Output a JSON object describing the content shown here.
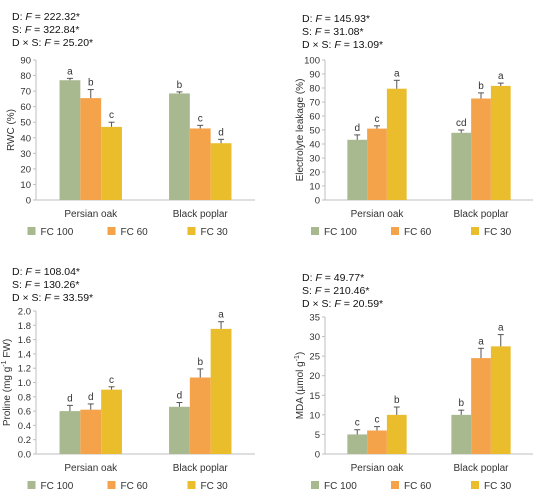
{
  "chart_data": [
    {
      "type": "bar",
      "panel": "top-left",
      "stats": [
        {
          "prefix": "D: ",
          "var": "F",
          "rest": " = 222.32*"
        },
        {
          "prefix": "S: ",
          "var": "F",
          "rest": " = 322.84*"
        },
        {
          "prefix": "D × S: ",
          "var": "F",
          "rest": " = 25.20*"
        }
      ],
      "ylabel": "RWC (%)",
      "ylabel_sup": "",
      "ylabel_tail": "",
      "ylim": [
        0,
        90
      ],
      "yticks": [
        0,
        10,
        20,
        30,
        40,
        50,
        60,
        70,
        80,
        90
      ],
      "decimals": 0,
      "categories": [
        "Persian oak",
        "Black poplar"
      ],
      "series": [
        {
          "name": "FC 100",
          "color": "#a9b98f",
          "values": [
            77,
            68.5
          ],
          "errors": [
            1.2,
            1.0
          ],
          "letters": [
            "a",
            "b"
          ]
        },
        {
          "name": "FC 60",
          "color": "#f5a34a",
          "values": [
            65.5,
            46
          ],
          "errors": [
            5.5,
            2.0
          ],
          "letters": [
            "b",
            "c"
          ]
        },
        {
          "name": "FC 30",
          "color": "#e9bd2c",
          "values": [
            47,
            36.5
          ],
          "errors": [
            3.0,
            2.5
          ],
          "letters": [
            "c",
            "d"
          ]
        }
      ]
    },
    {
      "type": "bar",
      "panel": "top-right",
      "stats": [
        {
          "prefix": "D: ",
          "var": "F",
          "rest": " = 145.93*"
        },
        {
          "prefix": "S: ",
          "var": "F",
          "rest": " = 31.08*"
        },
        {
          "prefix": "D × S: ",
          "var": "F",
          "rest": " = 13.09*"
        }
      ],
      "ylabel": "Electrolyte leakage (%)",
      "ylabel_sup": "",
      "ylabel_tail": "",
      "ylim": [
        0,
        100
      ],
      "yticks": [
        0,
        10,
        20,
        30,
        40,
        50,
        60,
        70,
        80,
        90,
        100
      ],
      "decimals": 0,
      "categories": [
        "Persian oak",
        "Black poplar"
      ],
      "series": [
        {
          "name": "FC 100",
          "color": "#a9b98f",
          "values": [
            43,
            48
          ],
          "errors": [
            3.5,
            2.0
          ],
          "letters": [
            "d",
            "cd"
          ]
        },
        {
          "name": "FC 60",
          "color": "#f5a34a",
          "values": [
            51,
            72.5
          ],
          "errors": [
            2.0,
            4.0
          ],
          "letters": [
            "c",
            "b"
          ]
        },
        {
          "name": "FC 30",
          "color": "#e9bd2c",
          "values": [
            79.5,
            81.5
          ],
          "errors": [
            6.0,
            2.0
          ],
          "letters": [
            "a",
            "a"
          ]
        }
      ]
    },
    {
      "type": "bar",
      "panel": "bottom-left",
      "stats": [
        {
          "prefix": "D: ",
          "var": "F",
          "rest": " = 108.04*"
        },
        {
          "prefix": "S: ",
          "var": "F",
          "rest": " = 130.26*"
        },
        {
          "prefix": "D × S: ",
          "var": "F",
          "rest": " = 33.59*"
        }
      ],
      "ylabel": "Proline (mg g",
      "ylabel_sup": "-1",
      "ylabel_tail": " FW)",
      "ylim": [
        0,
        2
      ],
      "yticks": [
        0,
        0.2,
        0.4,
        0.6,
        0.8,
        1.0,
        1.2,
        1.4,
        1.6,
        1.8,
        2.0
      ],
      "decimals": 1,
      "categories": [
        "Persian oak",
        "Black poplar"
      ],
      "series": [
        {
          "name": "FC 100",
          "color": "#a9b98f",
          "values": [
            0.6,
            0.66
          ],
          "errors": [
            0.08,
            0.06
          ],
          "letters": [
            "d",
            "d"
          ]
        },
        {
          "name": "FC 60",
          "color": "#f5a34a",
          "values": [
            0.62,
            1.07
          ],
          "errors": [
            0.08,
            0.12
          ],
          "letters": [
            "d",
            "b"
          ]
        },
        {
          "name": "FC 30",
          "color": "#e9bd2c",
          "values": [
            0.9,
            1.75
          ],
          "errors": [
            0.04,
            0.1
          ],
          "letters": [
            "c",
            "a"
          ]
        }
      ]
    },
    {
      "type": "bar",
      "panel": "bottom-right",
      "stats": [
        {
          "prefix": "D: ",
          "var": "F",
          "rest": " = 49.77*"
        },
        {
          "prefix": "S: ",
          "var": "F",
          "rest": " = 210.46*"
        },
        {
          "prefix": "D × S: ",
          "var": "F",
          "rest": " = 20.59*"
        }
      ],
      "ylabel": "MDA (µmol g",
      "ylabel_sup": "-1",
      "ylabel_tail": ")",
      "ylim": [
        0,
        35
      ],
      "yticks": [
        0,
        5,
        10,
        15,
        20,
        25,
        30,
        35
      ],
      "decimals": 0,
      "categories": [
        "Persian oak",
        "Black poplar"
      ],
      "series": [
        {
          "name": "FC 100",
          "color": "#a9b98f",
          "values": [
            5,
            10
          ],
          "errors": [
            1.2,
            1.2
          ],
          "letters": [
            "c",
            "b"
          ]
        },
        {
          "name": "FC 60",
          "color": "#f5a34a",
          "values": [
            6,
            24.5
          ],
          "errors": [
            1.0,
            2.5
          ],
          "letters": [
            "c",
            "a"
          ]
        },
        {
          "name": "FC 30",
          "color": "#e9bd2c",
          "values": [
            10,
            27.5
          ],
          "errors": [
            2.0,
            3.0
          ],
          "letters": [
            "b",
            "a"
          ]
        }
      ]
    }
  ]
}
